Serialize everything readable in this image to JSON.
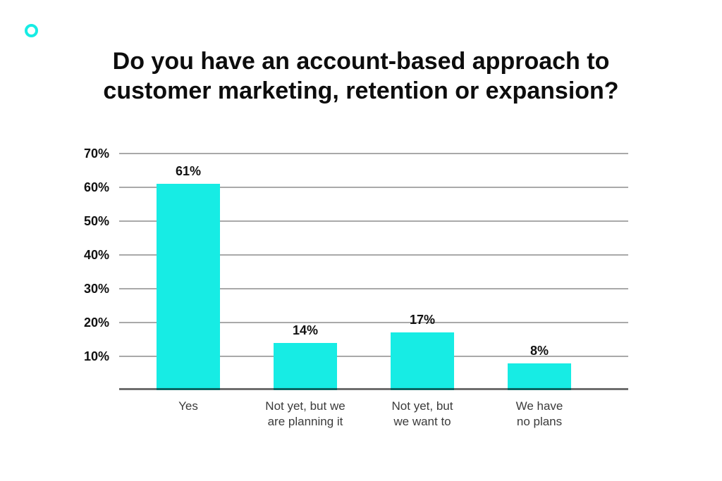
{
  "page": {
    "background_color": "#ffffff",
    "accent_color": "#17ece4"
  },
  "logo": {
    "icon": "circle-outline-icon",
    "color": "#17ece4"
  },
  "title": {
    "line1": "Do you have an account-based approach to",
    "line2": "customer marketing, retention or expansion?"
  },
  "chart_data": {
    "type": "bar",
    "title": "Do you have an account-based approach to customer marketing, retention or expansion?",
    "categories": [
      "Yes",
      "Not yet, but we are planning it",
      "Not yet, but we want to",
      "We have no plans"
    ],
    "category_label_lines": [
      [
        "Yes"
      ],
      [
        "Not yet, but we",
        "are planning it"
      ],
      [
        "Not yet, but",
        "we want to"
      ],
      [
        "We have",
        "no plans"
      ]
    ],
    "values": [
      61,
      14,
      17,
      8
    ],
    "value_labels": [
      "61%",
      "14%",
      "17%",
      "8%"
    ],
    "xlabel": "",
    "ylabel": "",
    "ylim": [
      0,
      73.75
    ],
    "yticks": [
      10,
      20,
      30,
      40,
      50,
      60,
      70
    ],
    "ytick_labels": [
      "10%",
      "20%",
      "30%",
      "40%",
      "50%",
      "60%",
      "70%"
    ],
    "grid": true,
    "legend": "none",
    "bar_color": "#17ece4",
    "gridline_color": "#9a9a9a",
    "axis_line_color": "#6e6e6e"
  }
}
